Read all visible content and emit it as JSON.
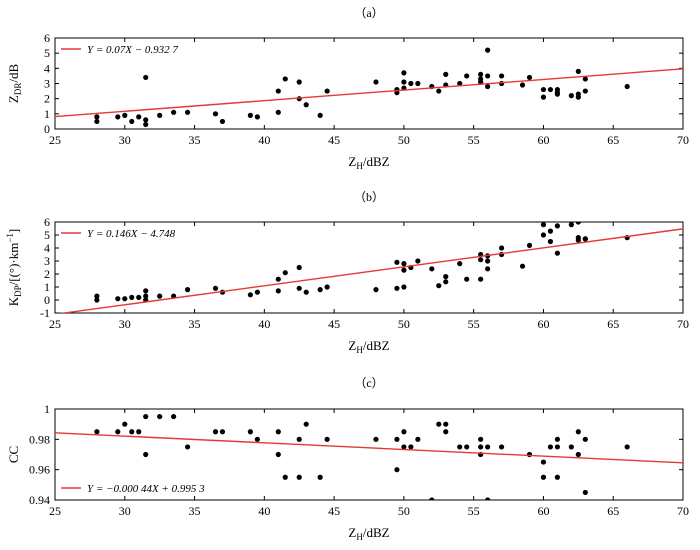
{
  "chart_data": [
    {
      "type": "scatter",
      "panel_label": "（a）",
      "xlabel": "Z_H/dBZ",
      "xlabel_main": "Z",
      "xlabel_sub": "H",
      "xlabel_unit": "/dBZ",
      "ylabel": "Z_DR/dB",
      "ylabel_main": "Z",
      "ylabel_sub": "DR",
      "ylabel_unit": "/dB",
      "xlim": [
        25,
        70
      ],
      "ylim": [
        0,
        6
      ],
      "xticks": [
        25,
        30,
        35,
        40,
        45,
        50,
        55,
        60,
        65,
        70
      ],
      "yticks": [
        0,
        1,
        2,
        3,
        4,
        5,
        6
      ],
      "legend_position": "top-left",
      "series": [
        {
          "name": "Y = 0.07X − 0.932 7",
          "kind": "line",
          "color": "#e53935",
          "slope": 0.07,
          "intercept": -0.9327
        },
        {
          "kind": "points",
          "color": "#000000",
          "x": [
            28,
            28,
            29.5,
            30,
            30.5,
            31,
            31.5,
            31.5,
            31.5,
            32.5,
            33.5,
            34.5,
            36.5,
            37,
            39,
            39.5,
            41,
            41,
            41.5,
            42.5,
            42.5,
            43,
            44,
            44.5,
            48,
            49.5,
            49.5,
            50,
            50,
            50,
            50.5,
            51,
            52,
            52.5,
            53,
            53,
            54,
            54.5,
            55.5,
            55.5,
            55.5,
            56,
            56,
            56,
            57,
            57,
            58.5,
            59,
            60,
            60,
            60.5,
            61,
            61,
            61,
            62,
            62.5,
            62.5,
            62.5,
            63,
            63,
            66
          ],
          "y": [
            0.8,
            0.5,
            0.8,
            0.9,
            0.5,
            0.8,
            3.4,
            0.6,
            0.3,
            0.9,
            1.1,
            1.1,
            1.0,
            0.5,
            0.9,
            0.8,
            2.5,
            1.1,
            3.3,
            3.1,
            2.0,
            1.6,
            0.9,
            2.5,
            3.1,
            2.4,
            2.6,
            3.7,
            3.1,
            2.7,
            3.0,
            3.0,
            2.8,
            2.5,
            3.6,
            2.9,
            3.0,
            3.5,
            3.6,
            3.3,
            3.1,
            5.2,
            3.5,
            2.8,
            3.5,
            3.0,
            2.9,
            3.4,
            2.6,
            2.1,
            2.6,
            2.4,
            2.6,
            2.3,
            2.2,
            3.8,
            2.3,
            2.1,
            3.3,
            2.5,
            2.8
          ]
        }
      ]
    },
    {
      "type": "scatter",
      "panel_label": "（b）",
      "xlabel": "Z_H/dBZ",
      "xlabel_main": "Z",
      "xlabel_sub": "H",
      "xlabel_unit": "/dBZ",
      "ylabel": "K_DP/[(°)·km⁻¹]",
      "ylabel_main": "K",
      "ylabel_sub": "DP",
      "ylabel_unit": "/[(°)·km",
      "ylabel_sup": "−1",
      "ylabel_tail": "]",
      "xlim": [
        25,
        70
      ],
      "ylim": [
        -1,
        6
      ],
      "xticks": [
        25,
        30,
        35,
        40,
        45,
        50,
        55,
        60,
        65,
        70
      ],
      "yticks": [
        -1,
        0,
        1,
        2,
        3,
        4,
        5,
        6
      ],
      "legend_position": "top-left",
      "series": [
        {
          "name": "Y = 0.146X − 4.748",
          "kind": "line",
          "color": "#e53935",
          "slope": 0.146,
          "intercept": -4.748
        },
        {
          "kind": "points",
          "color": "#000000",
          "x": [
            28,
            28,
            29.5,
            30,
            30.5,
            31,
            31.5,
            31.5,
            31.5,
            32.5,
            33.5,
            34.5,
            36.5,
            37,
            39,
            39.5,
            41,
            41,
            41.5,
            42.5,
            42.5,
            43,
            44,
            44.5,
            48,
            49.5,
            49.5,
            50,
            50,
            50,
            50.5,
            51,
            52,
            52.5,
            53,
            53,
            54,
            54.5,
            55.5,
            55.5,
            55.5,
            56,
            56,
            56,
            57,
            57,
            58.5,
            59,
            60,
            60,
            60.5,
            60.5,
            61,
            61,
            62,
            62.5,
            62.5,
            62.5,
            63,
            63,
            66
          ],
          "y": [
            0.3,
            0.0,
            0.1,
            0.1,
            0.2,
            0.2,
            0.7,
            0.3,
            0.0,
            0.3,
            0.3,
            0.8,
            0.9,
            0.6,
            0.4,
            0.6,
            1.6,
            0.7,
            2.1,
            2.5,
            0.9,
            0.6,
            0.8,
            1.0,
            0.8,
            2.9,
            0.9,
            2.8,
            2.3,
            1.0,
            2.5,
            3.0,
            2.4,
            1.1,
            1.8,
            1.4,
            2.8,
            1.6,
            3.5,
            3.1,
            1.6,
            3.4,
            3.0,
            2.4,
            4.0,
            3.5,
            2.6,
            4.2,
            5.8,
            5.0,
            5.3,
            4.5,
            5.7,
            3.6,
            5.8,
            6.0,
            4.8,
            4.6,
            4.7,
            4.7,
            4.8
          ]
        }
      ]
    },
    {
      "type": "scatter",
      "panel_label": "（c）",
      "xlabel": "Z_H/dBZ",
      "xlabel_main": "Z",
      "xlabel_sub": "H",
      "xlabel_unit": "/dBZ",
      "ylabel": "CC",
      "xlim": [
        25,
        70
      ],
      "ylim": [
        0.94,
        1.0
      ],
      "xticks": [
        25,
        30,
        35,
        40,
        45,
        50,
        55,
        60,
        65,
        70
      ],
      "yticks": [
        0.94,
        0.96,
        0.98,
        1.0
      ],
      "ytick_labels": [
        "0.94",
        "0.96",
        "0.98",
        "1"
      ],
      "legend_position": "bottom-left",
      "series": [
        {
          "name": "Y = −0.000 44X + 0.995 3",
          "kind": "line",
          "color": "#e53935",
          "slope": -0.00044,
          "intercept": 0.9953
        },
        {
          "kind": "points",
          "color": "#000000",
          "x": [
            28,
            29.5,
            30,
            30.5,
            31,
            31.5,
            31.5,
            32.5,
            33.5,
            34.5,
            36.5,
            37,
            39,
            39.5,
            41,
            41,
            41.5,
            42.5,
            42.5,
            43,
            44,
            44.5,
            48,
            49.5,
            49.5,
            50,
            50,
            50.5,
            51,
            52,
            52.5,
            53,
            53,
            54,
            54.5,
            55.5,
            55.5,
            55.5,
            56,
            56,
            57,
            59,
            60,
            60,
            60.5,
            61,
            61,
            61,
            62,
            62.5,
            62.5,
            63,
            63,
            66
          ],
          "y": [
            0.985,
            0.985,
            0.99,
            0.985,
            0.985,
            0.995,
            0.97,
            0.995,
            0.995,
            0.975,
            0.985,
            0.985,
            0.985,
            0.98,
            0.985,
            0.97,
            0.955,
            0.98,
            0.955,
            0.99,
            0.955,
            0.98,
            0.98,
            0.98,
            0.96,
            0.985,
            0.975,
            0.975,
            0.98,
            0.94,
            0.99,
            0.99,
            0.985,
            0.975,
            0.975,
            0.98,
            0.975,
            0.97,
            0.94,
            0.975,
            0.975,
            0.97,
            0.965,
            0.955,
            0.975,
            0.975,
            0.98,
            0.955,
            0.975,
            0.985,
            0.97,
            0.98,
            0.945,
            0.975
          ]
        }
      ]
    }
  ]
}
